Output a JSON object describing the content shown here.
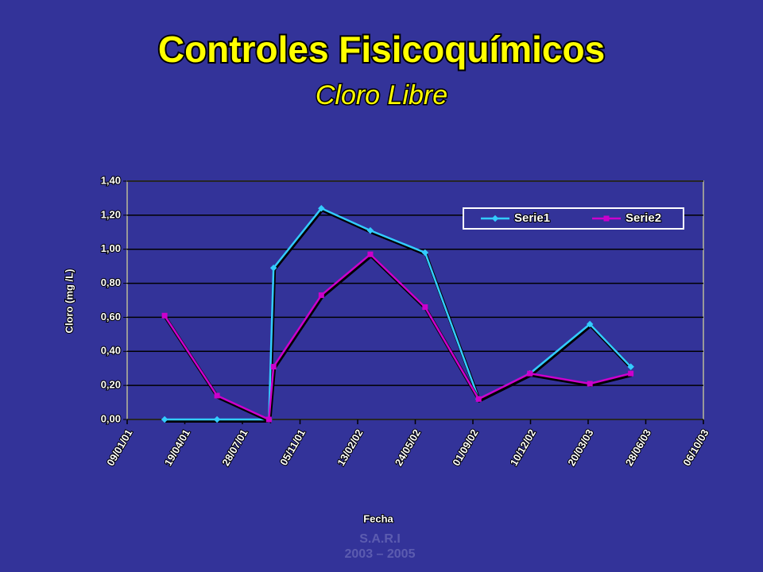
{
  "chart_data": {
    "type": "line",
    "title": "Controles Fisicoquímicos",
    "subtitle": "Cloro Libre",
    "y_label": "Cloro (mg /L)",
    "x_label": "Fecha",
    "footer": [
      "S.A.R.I",
      "2003 – 2005"
    ],
    "x": [
      "2001-03-15",
      "2001-06-14",
      "2001-09-12",
      "2001-09-20",
      "2001-12-12",
      "2002-03-07",
      "2002-06-10",
      "2002-09-11",
      "2002-12-09",
      "2003-03-23",
      "2003-06-02"
    ],
    "series": [
      {
        "name": "Serie1",
        "color": "#33ccff",
        "values": [
          0.0,
          0.0,
          0.0,
          0.89,
          1.24,
          1.11,
          0.98,
          0.12,
          0.27,
          0.56,
          0.31
        ]
      },
      {
        "name": "Serie2",
        "color": "#cc00cc",
        "values": [
          0.61,
          0.14,
          0.0,
          0.31,
          0.73,
          0.97,
          0.66,
          0.12,
          0.27,
          0.21,
          0.27
        ]
      }
    ],
    "xlim": [
      "2001-01-09",
      "2003-10-06"
    ],
    "xticks": [
      {
        "value": "2001-01-09",
        "label": "09/01/01"
      },
      {
        "value": "2001-04-19",
        "label": "19/04/01"
      },
      {
        "value": "2001-07-28",
        "label": "28/07/01"
      },
      {
        "value": "2001-11-05",
        "label": "05/11/01"
      },
      {
        "value": "2002-02-13",
        "label": "13/02/02"
      },
      {
        "value": "2002-05-24",
        "label": "24/05/02"
      },
      {
        "value": "2002-09-01",
        "label": "01/09/02"
      },
      {
        "value": "2002-12-10",
        "label": "10/12/02"
      },
      {
        "value": "2003-03-20",
        "label": "20/03/03"
      },
      {
        "value": "2003-06-28",
        "label": "28/06/03"
      },
      {
        "value": "2003-10-06",
        "label": "06/10/03"
      }
    ],
    "ylim": [
      0,
      1.4
    ],
    "yticks": [
      {
        "value": 0,
        "label": "0,00"
      },
      {
        "value": 0.2,
        "label": "0,20"
      },
      {
        "value": 0.4,
        "label": "0,40"
      },
      {
        "value": 0.6,
        "label": "0,60"
      },
      {
        "value": 0.8,
        "label": "0,80"
      },
      {
        "value": 1.0,
        "label": "1,00"
      },
      {
        "value": 1.2,
        "label": "1,20"
      },
      {
        "value": 1.4,
        "label": "1,40"
      }
    ],
    "grid": true,
    "legend": "top-right"
  }
}
